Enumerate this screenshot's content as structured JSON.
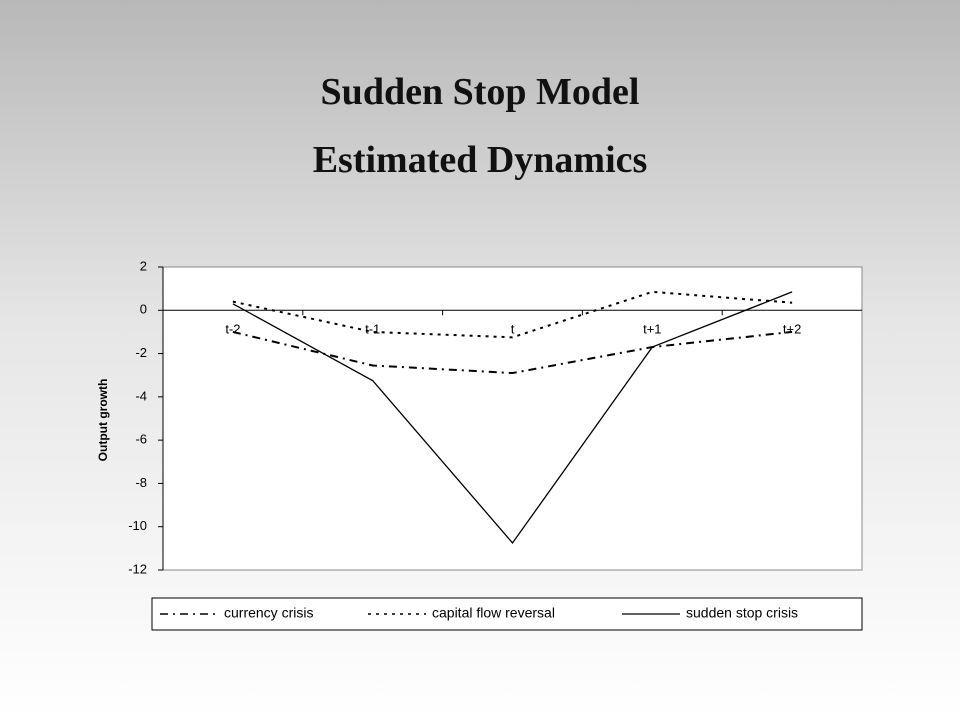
{
  "title": "Sudden Stop Model",
  "subtitle": "Estimated Dynamics",
  "chart_data": {
    "type": "line",
    "ylabel": "Output growth",
    "categories": [
      "t-2",
      "t-1",
      "t",
      "t+1",
      "t+2"
    ],
    "series": [
      {
        "name": "currency crisis",
        "color": "#000000",
        "line_style": "dash-dot",
        "values": [
          -1.0,
          -2.55,
          -2.9,
          -1.7,
          -1.0
        ]
      },
      {
        "name": "capital flow reversal",
        "color": "#000000",
        "line_style": "dotted",
        "values": [
          0.4,
          -1.0,
          -1.25,
          0.85,
          0.35
        ]
      },
      {
        "name": "sudden stop crisis",
        "color": "#000000",
        "line_style": "solid",
        "values": [
          0.3,
          -3.25,
          -10.75,
          -1.7,
          0.85
        ]
      }
    ],
    "ylim": [
      -12,
      2
    ],
    "yticks": [
      -12,
      -10,
      -8,
      -6,
      -4,
      -2,
      0,
      2
    ],
    "grid": false,
    "legend": "bottom"
  }
}
